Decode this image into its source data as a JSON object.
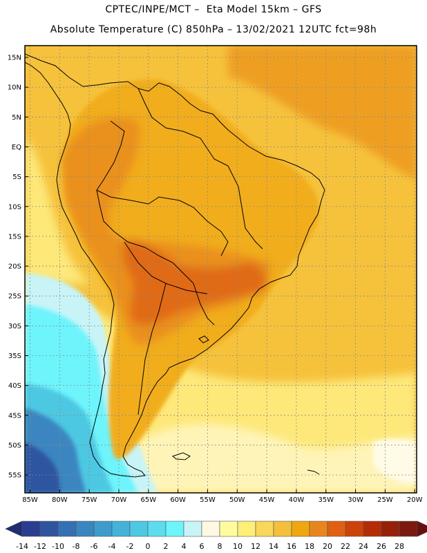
{
  "title_line1": "CPTEC/INPE/MCT –  Eta Model 15km – GFS",
  "title_line2": "Absolute Temperature (C) 850hPa – 13/02/2021 12UTC fct=98h",
  "map": {
    "lat_labels": [
      "15N",
      "10N",
      "5N",
      "EQ",
      "5S",
      "10S",
      "15S",
      "20S",
      "25S",
      "30S",
      "35S",
      "40S",
      "45S",
      "50S",
      "55S"
    ],
    "lon_labels": [
      "85W",
      "80W",
      "75W",
      "70W",
      "65W",
      "60W",
      "55W",
      "50W",
      "45W",
      "40W",
      "35W",
      "30W",
      "25W",
      "20W"
    ],
    "lat_values": [
      15,
      10,
      5,
      0,
      -5,
      -10,
      -15,
      -20,
      -25,
      -30,
      -35,
      -40,
      -45,
      -50,
      -55
    ],
    "lon_values": [
      -85,
      -80,
      -75,
      -70,
      -65,
      -60,
      -55,
      -50,
      -45,
      -40,
      -35,
      -30,
      -25,
      -20
    ]
  },
  "colorbar": {
    "labels": [
      "-14",
      "-12",
      "-10",
      "-8",
      "-6",
      "-4",
      "-2",
      "0",
      "2",
      "4",
      "6",
      "8",
      "10",
      "12",
      "14",
      "16",
      "18",
      "20",
      "22",
      "24",
      "26",
      "28"
    ],
    "colors": [
      "#2a3d8f",
      "#2f55a0",
      "#3570b2",
      "#3a86c0",
      "#3e9ccc",
      "#45b2d8",
      "#4ec8e3",
      "#5cdcee",
      "#6ef4fb",
      "#c8f4f8",
      "#fff8e3",
      "#fffca0",
      "#fdef78",
      "#f8d75a",
      "#f3c03c",
      "#efa710",
      "#e8861e",
      "#e06012",
      "#cd4208",
      "#b32c05",
      "#962008",
      "#7a1a10"
    ],
    "left_arrow_color": "#1e2e70",
    "right_arrow_color": "#6a0f10"
  },
  "temperature_zones": {
    "ocean_base": "#f6c23c",
    "continent_base": "#f1ad1a",
    "warm_core": "#ea901c",
    "hot_core": "#e06a14",
    "northeast_ocean": "#ee9f22",
    "south_pale": "#fde879",
    "south_paler": "#fff4b8",
    "cream": "#fffbe6",
    "cold_light": "#c8f4f8",
    "cold_cyan": "#6ef4fb",
    "cold_mid": "#4ec8e3",
    "cold_blue": "#3a86c0",
    "cold_deep": "#2f55a0"
  }
}
